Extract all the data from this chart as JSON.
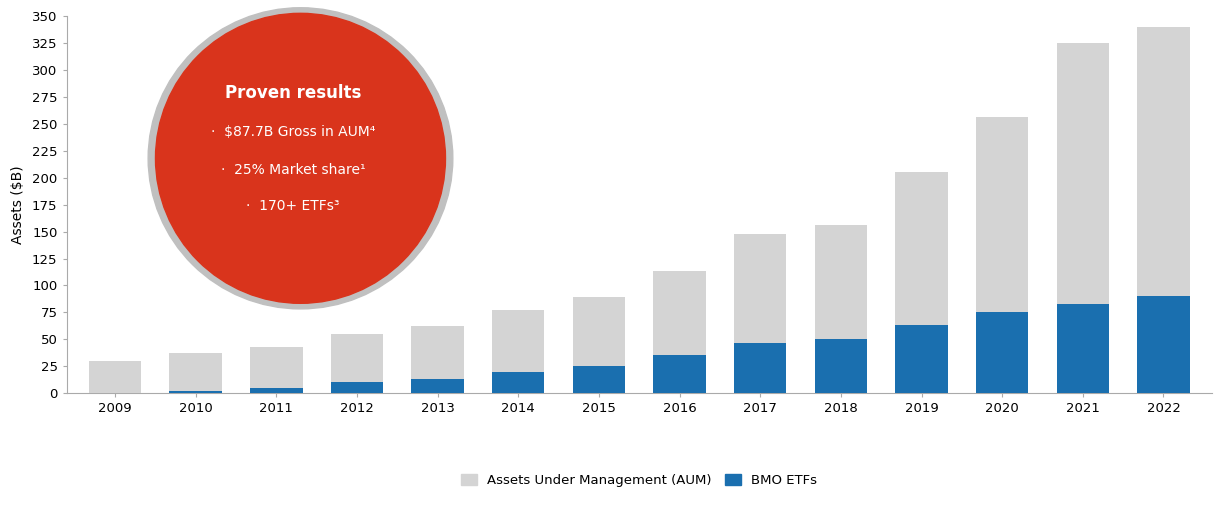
{
  "years": [
    "2009",
    "2010",
    "2011",
    "2012",
    "2013",
    "2014",
    "2015",
    "2016",
    "2017",
    "2018",
    "2019",
    "2020",
    "2021",
    "2022"
  ],
  "aum_total": [
    30,
    37,
    43,
    55,
    62,
    77,
    89,
    113,
    148,
    156,
    205,
    256,
    325,
    340
  ],
  "bmo_etfs": [
    0,
    2,
    5,
    10,
    13,
    20,
    25,
    35,
    47,
    50,
    63,
    75,
    83,
    90
  ],
  "aum_color": "#d4d4d4",
  "bmo_color": "#1a6faf",
  "ylabel": "Assets ($B)",
  "ylim": [
    0,
    350
  ],
  "yticks": [
    0,
    25,
    50,
    75,
    100,
    125,
    150,
    175,
    200,
    225,
    250,
    275,
    300,
    325,
    350
  ],
  "ytick_labels": [
    "0",
    "25",
    "50",
    "75",
    "100",
    "125",
    "150",
    "175",
    "200",
    "225",
    "250",
    "275",
    "300",
    "325",
    "350"
  ],
  "legend_aum": "Assets Under Management (AUM)",
  "legend_bmo": "BMO ETFs",
  "circle_color": "#d9341c",
  "circle_border_color": "#c0c0c0",
  "circle_text_title": "Proven results",
  "circle_bullet1": "·  $87.7B Gross in AUM⁴",
  "circle_bullet2": "·  25% Market share¹",
  "circle_bullet3": "·  170+ ETFs³",
  "background_color": "#ffffff"
}
